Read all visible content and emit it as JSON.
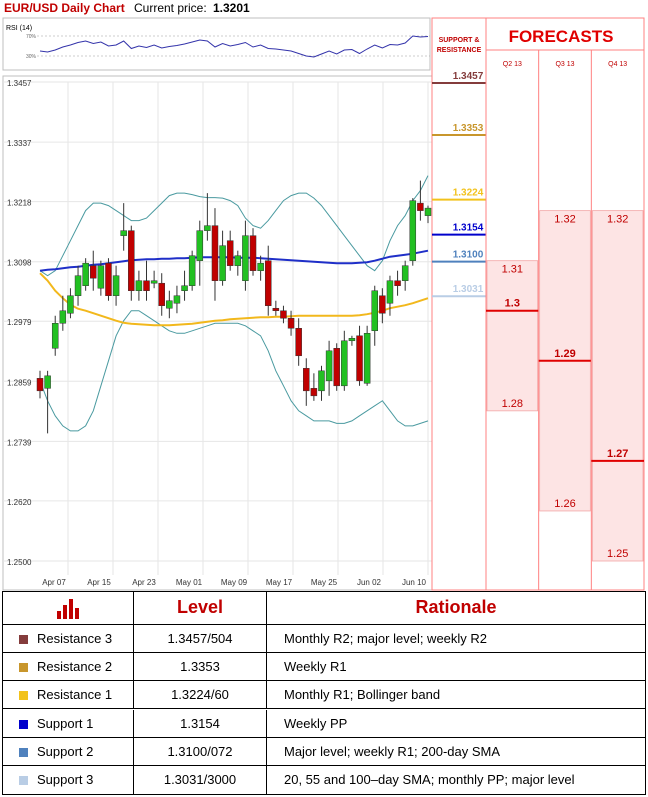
{
  "header": {
    "title": "EUR/USD Daily Chart",
    "current_price_label": "Current price:",
    "current_price": "1.3201"
  },
  "rsi": {
    "label": "RSI (14)",
    "level_high": "70%",
    "level_low": "30%"
  },
  "colors": {
    "accent": "#c00000",
    "bull": "#22c022",
    "bear": "#c00000",
    "sma_blue": "#1f2fc8",
    "sma_yellow": "#f2b81c",
    "bollinger": "#4a9aa0",
    "forecast_fill": "#fde4e4",
    "resistance3": "#843c3c",
    "resistance2": "#c8962c",
    "resistance1": "#f2c21c",
    "support1": "#0000cc",
    "support2": "#4f81bd",
    "support3": "#b9cde5"
  },
  "chart_data": {
    "type": "candlestick",
    "title": "EUR/USD Daily Chart",
    "y_ticks": [
      "1.3457",
      "1.3337",
      "1.3218",
      "1.3098",
      "1.2979",
      "1.2859",
      "1.2739",
      "1.2620",
      "1.2500"
    ],
    "ylim": [
      1.25,
      1.3457
    ],
    "x_ticks": [
      "Apr 07",
      "Apr 15",
      "Apr 23",
      "May 01",
      "May 09",
      "May 17",
      "May 25",
      "Jun 02",
      "Jun 10"
    ],
    "grid": true,
    "candles": [
      {
        "o": 1.2865,
        "h": 1.288,
        "l": 1.2825,
        "c": 1.284
      },
      {
        "o": 1.2845,
        "h": 1.288,
        "l": 1.2755,
        "c": 1.287
      },
      {
        "o": 1.2925,
        "h": 1.299,
        "l": 1.291,
        "c": 1.2975
      },
      {
        "o": 1.2975,
        "h": 1.303,
        "l": 1.296,
        "c": 1.3
      },
      {
        "o": 1.2995,
        "h": 1.3045,
        "l": 1.2985,
        "c": 1.303
      },
      {
        "o": 1.303,
        "h": 1.309,
        "l": 1.301,
        "c": 1.307
      },
      {
        "o": 1.305,
        "h": 1.3105,
        "l": 1.304,
        "c": 1.3095
      },
      {
        "o": 1.309,
        "h": 1.312,
        "l": 1.304,
        "c": 1.3065
      },
      {
        "o": 1.3045,
        "h": 1.31,
        "l": 1.303,
        "c": 1.309
      },
      {
        "o": 1.3095,
        "h": 1.3105,
        "l": 1.302,
        "c": 1.303
      },
      {
        "o": 1.303,
        "h": 1.309,
        "l": 1.301,
        "c": 1.307
      },
      {
        "o": 1.315,
        "h": 1.3215,
        "l": 1.312,
        "c": 1.316
      },
      {
        "o": 1.316,
        "h": 1.317,
        "l": 1.302,
        "c": 1.304
      },
      {
        "o": 1.304,
        "h": 1.308,
        "l": 1.302,
        "c": 1.306
      },
      {
        "o": 1.306,
        "h": 1.31,
        "l": 1.302,
        "c": 1.304
      },
      {
        "o": 1.3055,
        "h": 1.308,
        "l": 1.3045,
        "c": 1.306
      },
      {
        "o": 1.3055,
        "h": 1.3075,
        "l": 1.299,
        "c": 1.301
      },
      {
        "o": 1.3005,
        "h": 1.304,
        "l": 1.2985,
        "c": 1.302
      },
      {
        "o": 1.3015,
        "h": 1.305,
        "l": 1.2995,
        "c": 1.303
      },
      {
        "o": 1.304,
        "h": 1.308,
        "l": 1.302,
        "c": 1.305
      },
      {
        "o": 1.305,
        "h": 1.312,
        "l": 1.304,
        "c": 1.311
      },
      {
        "o": 1.31,
        "h": 1.318,
        "l": 1.305,
        "c": 1.316
      },
      {
        "o": 1.316,
        "h": 1.3235,
        "l": 1.314,
        "c": 1.317
      },
      {
        "o": 1.317,
        "h": 1.3205,
        "l": 1.302,
        "c": 1.306
      },
      {
        "o": 1.306,
        "h": 1.316,
        "l": 1.305,
        "c": 1.313
      },
      {
        "o": 1.314,
        "h": 1.316,
        "l": 1.308,
        "c": 1.309
      },
      {
        "o": 1.309,
        "h": 1.312,
        "l": 1.307,
        "c": 1.311
      },
      {
        "o": 1.306,
        "h": 1.318,
        "l": 1.304,
        "c": 1.315
      },
      {
        "o": 1.315,
        "h": 1.3165,
        "l": 1.307,
        "c": 1.308
      },
      {
        "o": 1.308,
        "h": 1.311,
        "l": 1.306,
        "c": 1.3095
      },
      {
        "o": 1.31,
        "h": 1.313,
        "l": 1.299,
        "c": 1.301
      },
      {
        "o": 1.3005,
        "h": 1.302,
        "l": 1.299,
        "c": 1.3
      },
      {
        "o": 1.3,
        "h": 1.301,
        "l": 1.2975,
        "c": 1.2985
      },
      {
        "o": 1.2985,
        "h": 1.3,
        "l": 1.295,
        "c": 1.2965
      },
      {
        "o": 1.2965,
        "h": 1.2985,
        "l": 1.289,
        "c": 1.291
      },
      {
        "o": 1.2885,
        "h": 1.2905,
        "l": 1.281,
        "c": 1.284
      },
      {
        "o": 1.2845,
        "h": 1.2875,
        "l": 1.282,
        "c": 1.283
      },
      {
        "o": 1.284,
        "h": 1.289,
        "l": 1.282,
        "c": 1.288
      },
      {
        "o": 1.286,
        "h": 1.294,
        "l": 1.283,
        "c": 1.292
      },
      {
        "o": 1.2925,
        "h": 1.2935,
        "l": 1.284,
        "c": 1.285
      },
      {
        "o": 1.285,
        "h": 1.296,
        "l": 1.284,
        "c": 1.294
      },
      {
        "o": 1.294,
        "h": 1.295,
        "l": 1.293,
        "c": 1.2945
      },
      {
        "o": 1.295,
        "h": 1.297,
        "l": 1.285,
        "c": 1.286
      },
      {
        "o": 1.2855,
        "h": 1.297,
        "l": 1.285,
        "c": 1.2955
      },
      {
        "o": 1.296,
        "h": 1.305,
        "l": 1.293,
        "c": 1.304
      },
      {
        "o": 1.303,
        "h": 1.3045,
        "l": 1.2975,
        "c": 1.2995
      },
      {
        "o": 1.3015,
        "h": 1.307,
        "l": 1.299,
        "c": 1.306
      },
      {
        "o": 1.306,
        "h": 1.308,
        "l": 1.303,
        "c": 1.305
      },
      {
        "o": 1.306,
        "h": 1.31,
        "l": 1.304,
        "c": 1.309
      },
      {
        "o": 1.31,
        "h": 1.3225,
        "l": 1.309,
        "c": 1.322
      },
      {
        "o": 1.3215,
        "h": 1.326,
        "l": 1.318,
        "c": 1.32
      },
      {
        "o": 1.319,
        "h": 1.321,
        "l": 1.3175,
        "c": 1.3205
      }
    ],
    "sma_blue": [
      1.308,
      1.3082,
      1.3083,
      1.3085,
      1.3087,
      1.3088,
      1.309,
      1.3092,
      1.3093,
      1.3095,
      1.3097,
      1.3099,
      1.3101,
      1.3102,
      1.3103,
      1.3103,
      1.3104,
      1.3104,
      1.3105,
      1.3105,
      1.3106,
      1.3107,
      1.3107,
      1.3107,
      1.3107,
      1.3107,
      1.3106,
      1.3106,
      1.3106,
      1.3105,
      1.3104,
      1.3103,
      1.3102,
      1.3101,
      1.31,
      1.3099,
      1.3098,
      1.3097,
      1.3096,
      1.3095,
      1.3095,
      1.3095,
      1.3096,
      1.3097,
      1.31,
      1.3104,
      1.3108,
      1.311,
      1.3112,
      1.3114,
      1.3117,
      1.312
    ],
    "sma_yellow": [
      1.3075,
      1.306,
      1.304,
      1.3025,
      1.3012,
      1.3004,
      1.3,
      1.2995,
      1.299,
      1.2985,
      1.298,
      1.2976,
      1.2974,
      1.2973,
      1.2972,
      1.2971,
      1.2971,
      1.2971,
      1.2972,
      1.2973,
      1.2974,
      1.2976,
      1.2978,
      1.298,
      1.2981,
      1.2983,
      1.2984,
      1.2985,
      1.2986,
      1.2987,
      1.2987,
      1.2988,
      1.2988,
      1.2989,
      1.299,
      1.299,
      1.299,
      1.299,
      1.299,
      1.299,
      1.299,
      1.299,
      1.2991,
      1.2993,
      1.2996,
      1.3,
      1.3005,
      1.3008,
      1.3011,
      1.3015,
      1.302,
      1.3025
    ],
    "bb_upper": [
      1.308,
      1.307,
      1.308,
      1.311,
      1.314,
      1.317,
      1.32,
      1.3215,
      1.3215,
      1.321,
      1.32,
      1.319,
      1.318,
      1.318,
      1.3185,
      1.32,
      1.3215,
      1.323,
      1.3235,
      1.3235,
      1.3232,
      1.3228,
      1.3226,
      1.3226,
      1.3225,
      1.322,
      1.321,
      1.3185,
      1.317,
      1.3165,
      1.318,
      1.32,
      1.322,
      1.323,
      1.3235,
      1.3235,
      1.3225,
      1.321,
      1.319,
      1.317,
      1.315,
      1.313,
      1.311,
      1.309,
      1.308,
      1.31,
      1.314,
      1.317,
      1.319,
      1.322,
      1.324,
      1.327
    ],
    "bb_lower": [
      1.286,
      1.282,
      1.279,
      1.277,
      1.276,
      1.276,
      1.277,
      1.28,
      1.285,
      1.29,
      1.295,
      1.298,
      1.3,
      1.3,
      1.299,
      1.298,
      1.297,
      1.296,
      1.2955,
      1.2955,
      1.296,
      1.2965,
      1.297,
      1.2975,
      1.2975,
      1.2975,
      1.2975,
      1.297,
      1.296,
      1.295,
      1.292,
      1.288,
      1.285,
      1.282,
      1.28,
      1.279,
      1.278,
      1.278,
      1.278,
      1.2775,
      1.2775,
      1.278,
      1.279,
      1.28,
      1.281,
      1.282,
      1.28,
      1.278,
      1.277,
      1.277,
      1.2775,
      1.278
    ],
    "rsi": [
      40,
      38,
      42,
      48,
      52,
      57,
      60,
      55,
      58,
      50,
      52,
      60,
      45,
      50,
      47,
      52,
      46,
      49,
      51,
      54,
      58,
      62,
      60,
      48,
      55,
      50,
      53,
      57,
      48,
      52,
      45,
      44,
      42,
      40,
      35,
      30,
      28,
      34,
      40,
      34,
      42,
      43,
      35,
      44,
      52,
      46,
      53,
      52,
      56,
      70,
      68,
      69
    ]
  },
  "levels_panel": {
    "header_line1": "SUPPORT &",
    "header_line2": "RESISTANCE",
    "items": [
      {
        "label": "1.3457",
        "value": 1.3457,
        "color": "#843c3c"
      },
      {
        "label": "1.3353",
        "value": 1.3353,
        "color": "#c8962c"
      },
      {
        "label": "1.3224",
        "value": 1.3224,
        "color": "#f2c21c"
      },
      {
        "label": "1.3154",
        "value": 1.3154,
        "color": "#0000cc"
      },
      {
        "label": "1.3100",
        "value": 1.31,
        "color": "#4f81bd"
      },
      {
        "label": "1.3031",
        "value": 1.3031,
        "color": "#b9cde5"
      }
    ]
  },
  "forecasts": {
    "title": "FORECASTS",
    "columns": [
      {
        "label": "Q2 13",
        "high": 1.31,
        "low": 1.28,
        "mid": 1.3,
        "high_label": "1.31",
        "low_label": "1.28",
        "mid_label": "1.3"
      },
      {
        "label": "Q3 13",
        "high": 1.32,
        "low": 1.26,
        "mid": 1.29,
        "high_label": "1.32",
        "low_label": "1.26",
        "mid_label": "1.29"
      },
      {
        "label": "Q4 13",
        "high": 1.32,
        "low": 1.25,
        "mid": 1.27,
        "high_label": "1.32",
        "low_label": "1.25",
        "mid_label": "1.27"
      }
    ]
  },
  "table": {
    "header_level": "Level",
    "header_rationale": "Rationale",
    "rows": [
      {
        "name": "Resistance 3",
        "level": "1.3457/504",
        "rationale": "Monthly R2; major level; weekly R2",
        "color": "#843c3c"
      },
      {
        "name": "Resistance 2",
        "level": "1.3353",
        "rationale": "Weekly R1",
        "color": "#c8962c"
      },
      {
        "name": "Resistance 1",
        "level": "1.3224/60",
        "rationale": "Monthly R1; Bollinger band",
        "color": "#f2c21c"
      },
      {
        "name": "Support 1",
        "level": "1.3154",
        "rationale": "Weekly PP",
        "color": "#0000cc"
      },
      {
        "name": "Support 2",
        "level": "1.3100/072",
        "rationale": "Major level; weekly R1; 200-day SMA",
        "color": "#4f81bd"
      },
      {
        "name": "Support 3",
        "level": "1.3031/3000",
        "rationale": "20, 55 and 100–day SMA; monthly PP; major level",
        "color": "#b9cde5"
      }
    ]
  }
}
